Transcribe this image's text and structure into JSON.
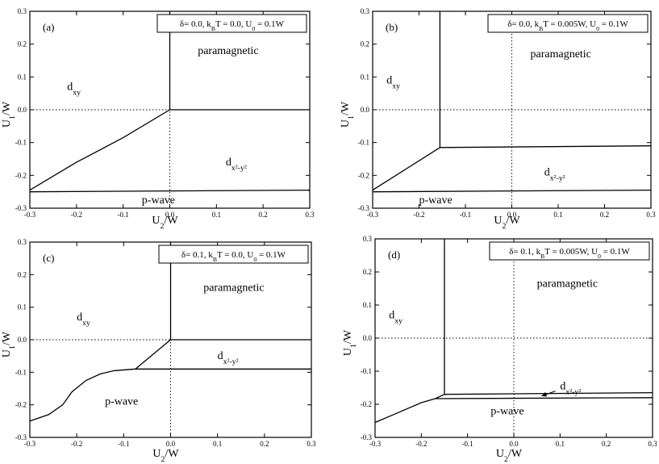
{
  "chart_data": [
    {
      "type": "line",
      "panel_label": "(a)",
      "legend": "δ= 0.0, k_BT = 0.0, U_0 = 0.1W",
      "legend_parts": [
        "δ= 0.0, k",
        "B",
        "T = 0.0, U",
        "0",
        " = 0.1W"
      ],
      "xlabel": [
        "U",
        "2",
        "/W"
      ],
      "ylabel": [
        "U",
        "1",
        "/W"
      ],
      "xlim": [
        -0.3,
        0.3
      ],
      "ylim": [
        -0.3,
        0.3
      ],
      "xticks": [
        "-0.3",
        "-0.2",
        "-0.1",
        "0.0",
        "0.1",
        "0.2",
        "0.3"
      ],
      "yticks": [
        "0.3",
        "0.2",
        "0.1",
        "0.0",
        "-0.1",
        "-0.2",
        "-0.3"
      ],
      "regions": [
        {
          "id": "paramagnetic",
          "text": "paramagnetic",
          "x": 0.06,
          "y": 0.17
        },
        {
          "id": "dxy",
          "text": "d",
          "sub": "xy",
          "x": -0.22,
          "y": 0.06
        },
        {
          "id": "dx2y2",
          "text": "d",
          "sub": "x²-y²",
          "x": 0.12,
          "y": -0.17
        },
        {
          "id": "pwave",
          "text": "p-wave",
          "x": -0.06,
          "y": -0.285
        }
      ],
      "boundaries": [
        {
          "name": "dxy / paramagnetic",
          "points": [
            [
              0.0,
              0.0
            ],
            [
              0.0,
              0.3
            ]
          ]
        },
        {
          "name": "paramagnetic / dx2-y2",
          "points": [
            [
              0.0,
              0.0
            ],
            [
              0.3,
              0.0
            ]
          ]
        },
        {
          "name": "dxy / dx2-y2",
          "points": [
            [
              -0.3,
              -0.245
            ],
            [
              -0.2,
              -0.16
            ],
            [
              -0.1,
              -0.085
            ],
            [
              0.0,
              0.0
            ]
          ]
        },
        {
          "name": "dx2-y2 / p-wave",
          "points": [
            [
              -0.3,
              -0.25
            ],
            [
              0.3,
              -0.245
            ]
          ]
        }
      ]
    },
    {
      "type": "line",
      "panel_label": "(b)",
      "legend": "δ= 0.0, k_BT = 0.005W, U_0 = 0.1W",
      "legend_parts": [
        "δ= 0.0, k",
        "B",
        "T = 0.005W, U",
        "0",
        " = 0.1W"
      ],
      "xlabel": [
        "U",
        "2",
        "/W"
      ],
      "ylabel": [
        "U",
        "1",
        "/W"
      ],
      "xlim": [
        -0.3,
        0.3
      ],
      "ylim": [
        -0.3,
        0.3
      ],
      "xticks": [
        "-0.3",
        "-0.2",
        "-0.1",
        "0.0",
        "0.1",
        "0.2",
        "0.3"
      ],
      "yticks": [
        "0.3",
        "0.2",
        "0.1",
        "0.0",
        "-0.1",
        "-0.2",
        "-0.3"
      ],
      "regions": [
        {
          "id": "paramagnetic",
          "text": "paramagnetic",
          "x": 0.04,
          "y": 0.16
        },
        {
          "id": "dxy",
          "text": "d",
          "sub": "xy",
          "x": -0.27,
          "y": 0.08
        },
        {
          "id": "dx2y2",
          "text": "d",
          "sub": "x²-y²",
          "x": 0.07,
          "y": -0.2
        },
        {
          "id": "pwave",
          "text": "p-wave",
          "x": -0.2,
          "y": -0.285
        }
      ],
      "boundaries": [
        {
          "name": "dxy / paramagnetic",
          "points": [
            [
              -0.155,
              -0.115
            ],
            [
              -0.155,
              0.3
            ]
          ]
        },
        {
          "name": "paramagnetic / dx2-y2",
          "points": [
            [
              -0.155,
              -0.115
            ],
            [
              0.3,
              -0.11
            ]
          ]
        },
        {
          "name": "dxy / dx2-y2",
          "points": [
            [
              -0.3,
              -0.245
            ],
            [
              -0.155,
              -0.115
            ]
          ]
        },
        {
          "name": "dx2-y2 / p-wave",
          "points": [
            [
              -0.3,
              -0.25
            ],
            [
              0.3,
              -0.245
            ]
          ]
        }
      ]
    },
    {
      "type": "line",
      "panel_label": "(c)",
      "legend": "δ= 0.1, k_BT = 0.0, U_0 = 0.1W",
      "legend_parts": [
        "δ= 0.1, k",
        "B",
        "T = 0.0, U",
        "0",
        " = 0.1W"
      ],
      "xlabel": [
        "U",
        "2",
        "/W"
      ],
      "ylabel": [
        "U",
        "1",
        "/W"
      ],
      "xlim": [
        -0.3,
        0.3
      ],
      "ylim": [
        -0.3,
        0.3
      ],
      "xticks": [
        "-0.3",
        "-0.2",
        "-0.1",
        "0.0",
        "0.1",
        "0.2",
        "0.3"
      ],
      "yticks": [
        "0.3",
        "0.2",
        "0.1",
        "0.0",
        "-0.1",
        "-0.2",
        "-0.3"
      ],
      "regions": [
        {
          "id": "paramagnetic",
          "text": "paramagnetic",
          "x": 0.07,
          "y": 0.15
        },
        {
          "id": "dxy",
          "text": "d",
          "sub": "xy",
          "x": -0.2,
          "y": 0.06
        },
        {
          "id": "dx2y2",
          "text": "d",
          "sub": "x²-y²",
          "x": 0.1,
          "y": -0.06
        },
        {
          "id": "pwave",
          "text": "p-wave",
          "x": -0.14,
          "y": -0.2
        }
      ],
      "boundaries": [
        {
          "name": "dxy / paramagnetic",
          "points": [
            [
              0.0,
              0.0
            ],
            [
              0.0,
              0.3
            ]
          ]
        },
        {
          "name": "paramagnetic / dx2-y2",
          "points": [
            [
              0.0,
              0.0
            ],
            [
              0.3,
              0.0
            ]
          ]
        },
        {
          "name": "dxy / dx2-y2",
          "points": [
            [
              -0.075,
              -0.09
            ],
            [
              0.0,
              0.0
            ]
          ]
        },
        {
          "name": "dx2-y2 / p-wave",
          "points": [
            [
              -0.075,
              -0.09
            ],
            [
              0.3,
              -0.09
            ]
          ]
        },
        {
          "name": "dxy / p-wave",
          "points": [
            [
              -0.3,
              -0.25
            ],
            [
              -0.26,
              -0.23
            ],
            [
              -0.23,
              -0.2
            ],
            [
              -0.21,
              -0.16
            ],
            [
              -0.18,
              -0.125
            ],
            [
              -0.15,
              -0.105
            ],
            [
              -0.12,
              -0.095
            ],
            [
              -0.075,
              -0.09
            ]
          ]
        }
      ]
    },
    {
      "type": "line",
      "panel_label": "(d)",
      "legend": "δ= 0.1, k_BT = 0.005W, U_0 = 0.1W",
      "legend_parts": [
        "δ= 0.1, k",
        "B",
        "T = 0.005W, U",
        "0",
        " = 0.1W"
      ],
      "xlabel": [
        "U",
        "2",
        "/W"
      ],
      "ylabel": [
        "U",
        "1",
        "/W"
      ],
      "xlim": [
        -0.3,
        0.3
      ],
      "ylim": [
        -0.3,
        0.3
      ],
      "xticks": [
        "-0.3",
        "-0.2",
        "-0.1",
        "0.0",
        "0.1",
        "0.2",
        "0.3"
      ],
      "yticks": [
        "0.3",
        "0.2",
        "0.1",
        "0.0",
        "-0.1",
        "-0.2",
        "-0.3"
      ],
      "regions": [
        {
          "id": "paramagnetic",
          "text": "paramagnetic",
          "x": 0.05,
          "y": 0.155
        },
        {
          "id": "dxy",
          "text": "d",
          "sub": "xy",
          "x": -0.27,
          "y": 0.06
        },
        {
          "id": "dx2y2",
          "text": "d",
          "sub": "x²-y²",
          "x": 0.1,
          "y": -0.155
        },
        {
          "id": "pwave",
          "text": "p-wave",
          "x": -0.05,
          "y": -0.23
        }
      ],
      "boundaries": [
        {
          "name": "dxy / paramagnetic",
          "points": [
            [
              -0.15,
              -0.17
            ],
            [
              -0.15,
              0.3
            ]
          ]
        },
        {
          "name": "paramagnetic / dx2-y2",
          "points": [
            [
              -0.15,
              -0.17
            ],
            [
              0.3,
              -0.165
            ]
          ]
        },
        {
          "name": "dx2-y2 / p-wave",
          "points": [
            [
              -0.17,
              -0.183
            ],
            [
              0.3,
              -0.18
            ]
          ]
        },
        {
          "name": "dxy / p-wave",
          "points": [
            [
              -0.3,
              -0.255
            ],
            [
              -0.25,
              -0.225
            ],
            [
              -0.2,
              -0.195
            ],
            [
              -0.17,
              -0.183
            ],
            [
              -0.15,
              -0.17
            ]
          ]
        }
      ],
      "annotation_arrow": {
        "from": [
          0.09,
          -0.16
        ],
        "to": [
          0.06,
          -0.175
        ]
      }
    }
  ]
}
